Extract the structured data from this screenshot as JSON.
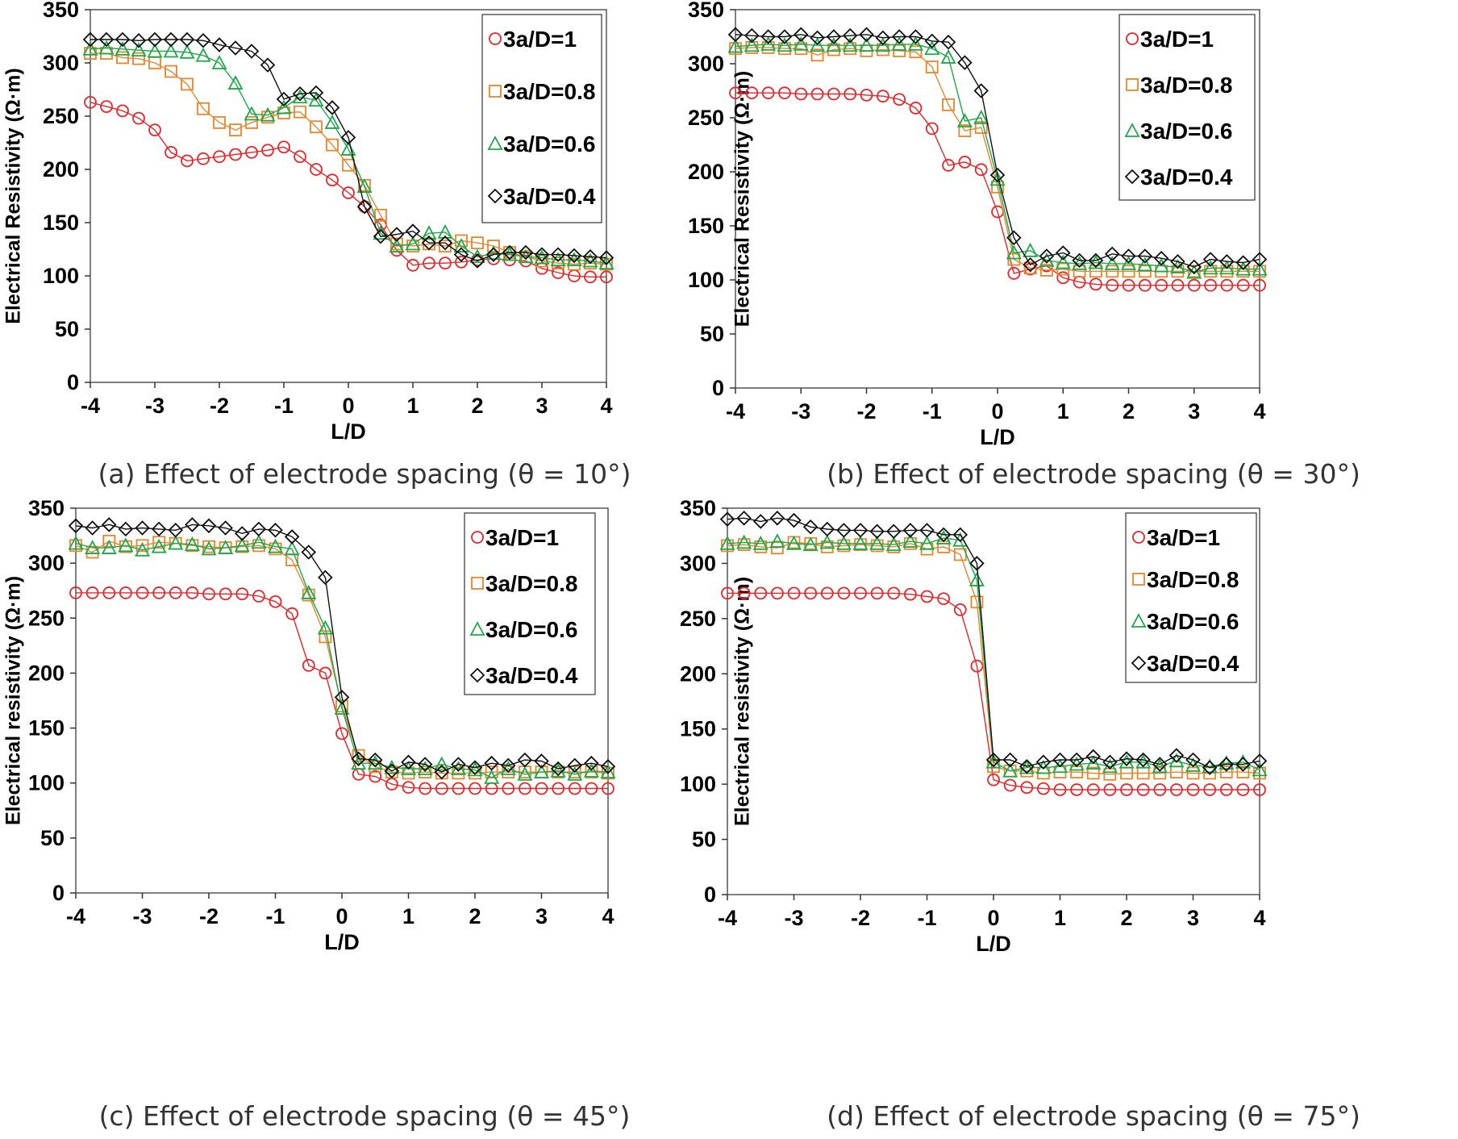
{
  "chart_data": [
    {
      "type": "line",
      "caption": "(a) Effect of electrode spacing (θ = 10°)",
      "xlabel": "L/D",
      "ylabel": "Electrical Resistivity (Ω·m)",
      "xlim": [
        -4,
        4
      ],
      "ylim": [
        0,
        350
      ],
      "xticks": [
        "-4",
        "-3",
        "-2",
        "-1",
        "0",
        "1",
        "2",
        "3",
        "4"
      ],
      "yticks": [
        "0",
        "50",
        "100",
        "150",
        "200",
        "250",
        "300",
        "350"
      ],
      "legend_position": "top-right",
      "x": [
        -4,
        -3.75,
        -3.5,
        -3.25,
        -3,
        -2.75,
        -2.5,
        -2.25,
        -2,
        -1.75,
        -1.5,
        -1.25,
        -1,
        -0.75,
        -0.5,
        -0.25,
        0,
        0.25,
        0.5,
        0.75,
        1,
        1.25,
        1.5,
        1.75,
        2,
        2.25,
        2.5,
        2.75,
        3,
        3.25,
        3.5,
        3.75,
        4
      ],
      "series": [
        {
          "name": "3a/D=1",
          "color": "#e8262b",
          "marker": "circle",
          "values": [
            263,
            259,
            255,
            248,
            237,
            216,
            208,
            210,
            212,
            214,
            216,
            218,
            221,
            212,
            200,
            190,
            178,
            165,
            148,
            124,
            110,
            112,
            112,
            113,
            115,
            116,
            115,
            114,
            107,
            103,
            100,
            99,
            99
          ]
        },
        {
          "name": "3a/D=0.8",
          "color": "#e8862e",
          "marker": "square",
          "values": [
            309,
            309,
            305,
            304,
            300,
            292,
            280,
            257,
            244,
            237,
            244,
            249,
            253,
            254,
            240,
            223,
            204,
            185,
            157,
            130,
            128,
            130,
            128,
            133,
            131,
            128,
            122,
            118,
            114,
            112,
            111,
            112,
            111
          ]
        },
        {
          "name": "3a/D=0.6",
          "color": "#1fa84a",
          "marker": "triangle",
          "values": [
            313,
            314,
            313,
            312,
            311,
            311,
            310,
            307,
            300,
            281,
            252,
            251,
            258,
            268,
            265,
            244,
            219,
            184,
            140,
            128,
            130,
            140,
            141,
            128,
            118,
            121,
            120,
            118,
            117,
            115,
            115,
            114,
            112
          ]
        },
        {
          "name": "3a/D=0.4",
          "color": "#111111",
          "marker": "diamond",
          "values": [
            322,
            322,
            322,
            321,
            322,
            322,
            322,
            321,
            317,
            314,
            311,
            298,
            266,
            271,
            272,
            258,
            230,
            165,
            137,
            139,
            142,
            131,
            131,
            120,
            114,
            120,
            122,
            122,
            120,
            120,
            119,
            118,
            117
          ]
        }
      ]
    },
    {
      "type": "line",
      "caption": "(b) Effect of electrode spacing (θ = 30°)",
      "xlabel": "L/D",
      "ylabel": "Electrical Resistivity (Ω·m)",
      "xlim": [
        -4,
        4
      ],
      "ylim": [
        0,
        350
      ],
      "xticks": [
        "-4",
        "-3",
        "-2",
        "-1",
        "0",
        "1",
        "2",
        "3",
        "4"
      ],
      "yticks": [
        "0",
        "50",
        "100",
        "150",
        "200",
        "250",
        "300",
        "350"
      ],
      "legend_position": "top-right",
      "x": [
        -4,
        -3.75,
        -3.5,
        -3.25,
        -3,
        -2.75,
        -2.5,
        -2.25,
        -2,
        -1.75,
        -1.5,
        -1.25,
        -1,
        -0.75,
        -0.5,
        -0.25,
        0,
        0.25,
        0.5,
        0.75,
        1,
        1.25,
        1.5,
        1.75,
        2,
        2.25,
        2.5,
        2.75,
        3,
        3.25,
        3.5,
        3.75,
        4
      ],
      "series": [
        {
          "name": "3a/D=1",
          "color": "#e8262b",
          "marker": "circle",
          "values": [
            273,
            273,
            273,
            273,
            272,
            272,
            272,
            272,
            271,
            270,
            267,
            259,
            240,
            206,
            209,
            202,
            163,
            106,
            110,
            113,
            102,
            98,
            96,
            95,
            95,
            95,
            95,
            95,
            95,
            95,
            95,
            95,
            95
          ]
        },
        {
          "name": "3a/D=0.8",
          "color": "#e8862e",
          "marker": "square",
          "values": [
            314,
            315,
            315,
            314,
            314,
            308,
            313,
            314,
            312,
            313,
            312,
            311,
            297,
            262,
            238,
            241,
            186,
            119,
            111,
            109,
            110,
            108,
            108,
            108,
            108,
            108,
            108,
            108,
            108,
            108,
            108,
            108,
            108
          ]
        },
        {
          "name": "3a/D=0.6",
          "color": "#1fa84a",
          "marker": "triangle",
          "values": [
            316,
            317,
            318,
            317,
            318,
            317,
            317,
            317,
            317,
            317,
            318,
            318,
            314,
            306,
            247,
            250,
            193,
            125,
            127,
            118,
            116,
            115,
            116,
            115,
            115,
            114,
            113,
            112,
            107,
            111,
            111,
            110,
            110
          ]
        },
        {
          "name": "3a/D=0.4",
          "color": "#111111",
          "marker": "diamond",
          "values": [
            327,
            326,
            325,
            325,
            327,
            324,
            325,
            326,
            327,
            324,
            325,
            325,
            321,
            320,
            301,
            275,
            197,
            139,
            114,
            122,
            125,
            118,
            118,
            124,
            122,
            122,
            120,
            117,
            112,
            119,
            117,
            116,
            119
          ]
        }
      ]
    },
    {
      "type": "line",
      "caption": "(c) Effect of electrode spacing (θ = 45°)",
      "xlabel": "L/D",
      "ylabel": "Electrical resistivity (Ω·m)",
      "xlim": [
        -4,
        4
      ],
      "ylim": [
        0,
        350
      ],
      "xticks": [
        "-4",
        "-3",
        "-2",
        "-1",
        "0",
        "1",
        "2",
        "3",
        "4"
      ],
      "yticks": [
        "0",
        "50",
        "100",
        "150",
        "200",
        "250",
        "300",
        "350"
      ],
      "legend_position": "top-right",
      "x": [
        -4,
        -3.75,
        -3.5,
        -3.25,
        -3,
        -2.75,
        -2.5,
        -2.25,
        -2,
        -1.75,
        -1.5,
        -1.25,
        -1,
        -0.75,
        -0.5,
        -0.25,
        0,
        0.25,
        0.5,
        0.75,
        1,
        1.25,
        1.5,
        1.75,
        2,
        2.25,
        2.5,
        2.75,
        3,
        3.25,
        3.5,
        3.75,
        4
      ],
      "series": [
        {
          "name": "3a/D=1",
          "color": "#e8262b",
          "marker": "circle",
          "values": [
            273,
            273,
            273,
            273,
            273,
            273,
            273,
            273,
            272,
            272,
            272,
            270,
            265,
            254,
            207,
            200,
            145,
            108,
            106,
            99,
            96,
            95,
            95,
            95,
            95,
            95,
            95,
            95,
            95,
            95,
            95,
            95,
            95
          ]
        },
        {
          "name": "3a/D=0.8",
          "color": "#e8862e",
          "marker": "square",
          "values": [
            316,
            310,
            320,
            315,
            316,
            319,
            318,
            316,
            315,
            314,
            315,
            316,
            313,
            303,
            271,
            233,
            170,
            125,
            115,
            110,
            109,
            110,
            109,
            109,
            109,
            110,
            110,
            110,
            110,
            110,
            110,
            110,
            109
          ]
        },
        {
          "name": "3a/D=0.6",
          "color": "#1fa84a",
          "marker": "triangle",
          "values": [
            318,
            314,
            314,
            316,
            312,
            315,
            318,
            317,
            313,
            314,
            316,
            319,
            315,
            313,
            273,
            241,
            168,
            118,
            118,
            114,
            113,
            113,
            117,
            113,
            112,
            105,
            113,
            108,
            110,
            111,
            108,
            111,
            110
          ]
        },
        {
          "name": "3a/D=0.4",
          "color": "#111111",
          "marker": "diamond",
          "values": [
            334,
            332,
            335,
            331,
            332,
            331,
            330,
            335,
            334,
            332,
            327,
            331,
            330,
            324,
            310,
            287,
            178,
            122,
            121,
            111,
            119,
            117,
            110,
            117,
            114,
            118,
            116,
            121,
            120,
            113,
            116,
            118,
            115
          ]
        }
      ]
    },
    {
      "type": "line",
      "caption": "(d) Effect of electrode spacing (θ = 75°)",
      "xlabel": "L/D",
      "ylabel": "Electrical resistivity (Ω·m)",
      "xlim": [
        -4,
        4
      ],
      "ylim": [
        0,
        350
      ],
      "xticks": [
        "-4",
        "-3",
        "-2",
        "-1",
        "0",
        "1",
        "2",
        "3",
        "4"
      ],
      "yticks": [
        "0",
        "50",
        "100",
        "150",
        "200",
        "250",
        "300",
        "350"
      ],
      "legend_position": "top-right",
      "x": [
        -4,
        -3.75,
        -3.5,
        -3.25,
        -3,
        -2.75,
        -2.5,
        -2.25,
        -2,
        -1.75,
        -1.5,
        -1.25,
        -1,
        -0.75,
        -0.5,
        -0.25,
        0,
        0.25,
        0.5,
        0.75,
        1,
        1.25,
        1.5,
        1.75,
        2,
        2.25,
        2.5,
        2.75,
        3,
        3.25,
        3.5,
        3.75,
        4
      ],
      "series": [
        {
          "name": "3a/D=1",
          "color": "#e8262b",
          "marker": "circle",
          "values": [
            273,
            273,
            273,
            273,
            273,
            273,
            273,
            273,
            273,
            273,
            273,
            272,
            270,
            268,
            258,
            207,
            104,
            99,
            97,
            96,
            95,
            95,
            95,
            95,
            95,
            95,
            95,
            95,
            95,
            95,
            95,
            95,
            95
          ]
        },
        {
          "name": "3a/D=0.8",
          "color": "#e8862e",
          "marker": "square",
          "values": [
            316,
            317,
            315,
            314,
            319,
            318,
            315,
            316,
            317,
            316,
            315,
            318,
            313,
            315,
            308,
            265,
            116,
            112,
            112,
            110,
            111,
            111,
            110,
            109,
            110,
            110,
            110,
            111,
            110,
            110,
            111,
            111,
            110
          ]
        },
        {
          "name": "3a/D=0.6",
          "color": "#1fa84a",
          "marker": "triangle",
          "values": [
            318,
            319,
            318,
            320,
            318,
            317,
            319,
            318,
            318,
            318,
            317,
            320,
            318,
            323,
            321,
            285,
            120,
            112,
            115,
            115,
            116,
            118,
            119,
            116,
            120,
            120,
            116,
            121,
            117,
            116,
            119,
            120,
            113
          ]
        },
        {
          "name": "3a/D=0.4",
          "color": "#111111",
          "marker": "diamond",
          "values": [
            340,
            341,
            338,
            341,
            339,
            333,
            331,
            330,
            330,
            329,
            329,
            330,
            330,
            326,
            326,
            300,
            122,
            122,
            116,
            120,
            122,
            122,
            125,
            120,
            123,
            122,
            118,
            126,
            122,
            115,
            118,
            118,
            121
          ]
        }
      ]
    }
  ]
}
